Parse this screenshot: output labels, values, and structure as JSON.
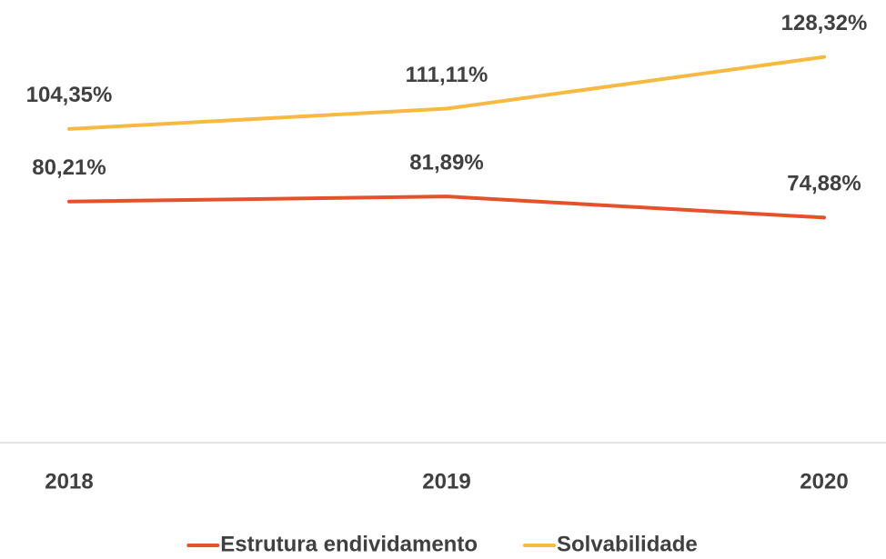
{
  "chart_data": {
    "type": "line",
    "categories": [
      "2018",
      "2019",
      "2020"
    ],
    "series": [
      {
        "name": "Estrutura endividamento",
        "color": "#e4512b",
        "values": [
          80.21,
          81.89,
          74.88
        ],
        "value_labels": [
          "80,21%",
          "81,89%",
          "74,88%"
        ]
      },
      {
        "name": "Solvabilidade",
        "color": "#f6b942",
        "values": [
          104.35,
          111.11,
          128.32
        ],
        "value_labels": [
          "104,35%",
          "111,11%",
          "128,32%"
        ]
      }
    ],
    "ylim": [
      0,
      140
    ]
  }
}
